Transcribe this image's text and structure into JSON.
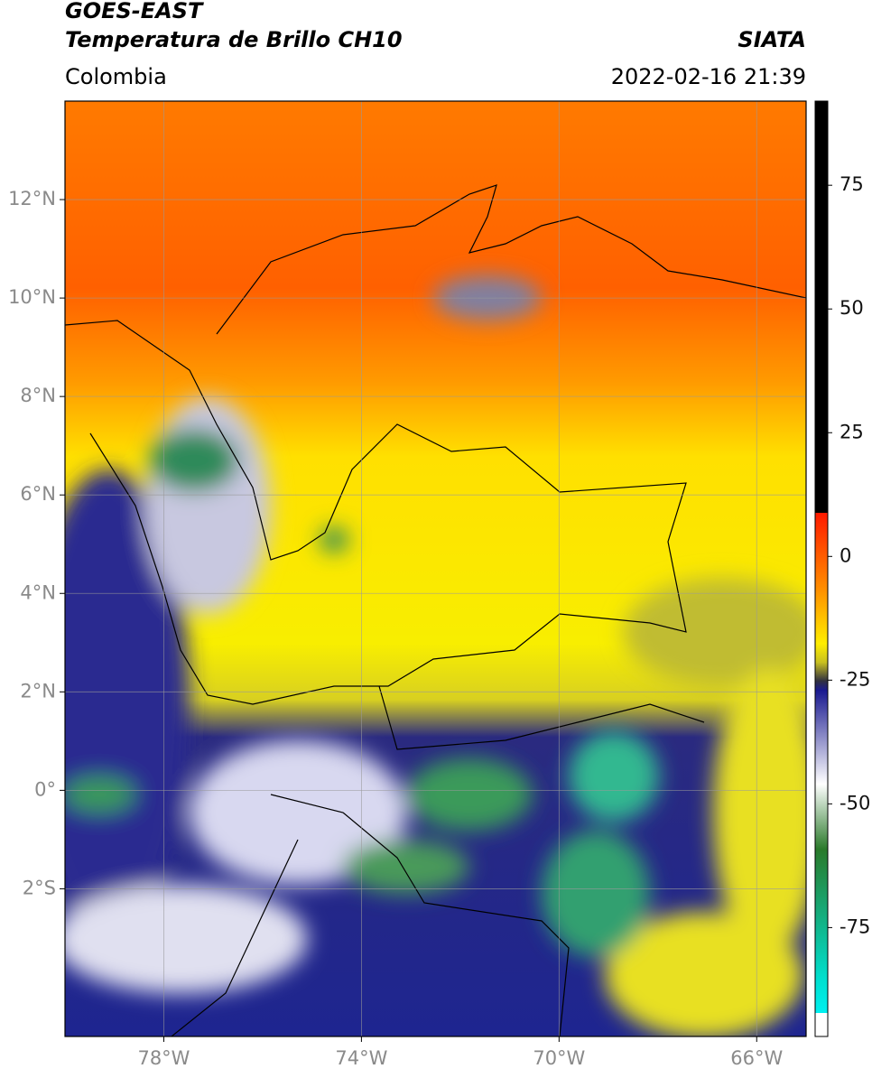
{
  "header": {
    "title": "GOES-EAST",
    "subtitle": "Temperatura de Brillo CH10",
    "source": "SIATA",
    "region": "Colombia",
    "datetime": "2022-02-16 21:39"
  },
  "map": {
    "xlim": [
      -80,
      -65
    ],
    "ylim": [
      -5,
      14
    ],
    "xticks": [
      {
        "value": -78,
        "label": "78°W"
      },
      {
        "value": -74,
        "label": "74°W"
      },
      {
        "value": -70,
        "label": "70°W"
      },
      {
        "value": -66,
        "label": "66°W"
      }
    ],
    "yticks": [
      {
        "value": 12,
        "label": "12°N"
      },
      {
        "value": 10,
        "label": "10°N"
      },
      {
        "value": 8,
        "label": "8°N"
      },
      {
        "value": 6,
        "label": "6°N"
      },
      {
        "value": 4,
        "label": "4°N"
      },
      {
        "value": 2,
        "label": "2°N"
      },
      {
        "value": 0,
        "label": "0°"
      },
      {
        "value": -2,
        "label": "2°S"
      }
    ],
    "grid": true
  },
  "colorbar": {
    "lim": [
      -97,
      92
    ],
    "ticks": [
      75,
      50,
      25,
      0,
      -25,
      -50,
      -75
    ]
  }
}
